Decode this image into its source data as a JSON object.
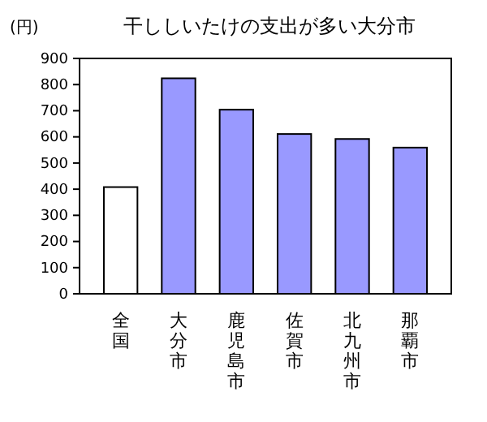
{
  "chart_data": {
    "type": "bar",
    "title": "干ししいたけの支出が多い大分市",
    "ylabel": "(円)",
    "categories": [
      "全国",
      "大分市",
      "鹿児島市",
      "佐賀市",
      "北九州市",
      "那覇市"
    ],
    "values": [
      408,
      824,
      704,
      611,
      592,
      559
    ],
    "colors": [
      "#ffffff",
      "#9999ff",
      "#9999ff",
      "#9999ff",
      "#9999ff",
      "#9999ff"
    ],
    "ylim": [
      0,
      900
    ],
    "yticks": [
      0,
      100,
      200,
      300,
      400,
      500,
      600,
      700,
      800,
      900
    ],
    "grid": false
  }
}
